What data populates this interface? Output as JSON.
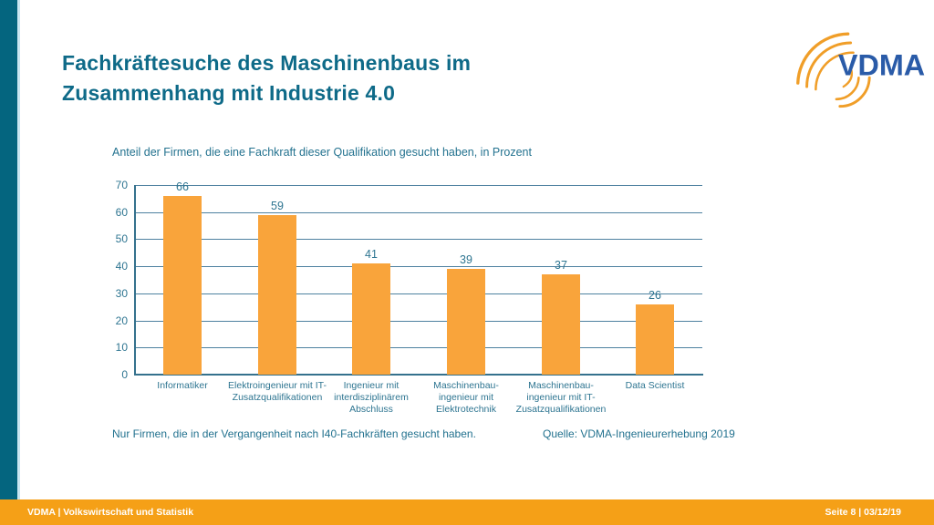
{
  "slide": {
    "title_line1": "Fachkräftesuche des Maschinenbaus im",
    "title_line2": "Zusammenhang mit Industrie 4.0",
    "subtitle": "Anteil der Firmen, die eine Fachkraft dieser Qualifikation gesucht haben, in Prozent",
    "footnote": "Nur Firmen, die in der Vergangenheit nach I40-Fachkräften gesucht haben.",
    "source": "Quelle: VDMA-Ingenieurerhebung 2019"
  },
  "logo": {
    "text": "VDMA"
  },
  "footer": {
    "left": "VDMA | Volkswirtschaft und Statistik",
    "right": "Seite 8 | 03/12/19"
  },
  "colors": {
    "teal_strip": "#04657f",
    "teal_text": "#23728f",
    "title_teal": "#0e6a88",
    "bar_orange": "#f9a43b",
    "footer_orange": "#f5a017",
    "logo_blue": "#2a5ba8",
    "logo_arc_orange": "#f09e28",
    "gridline": "#4e81a0"
  },
  "chart_data": {
    "type": "bar",
    "title": "Anteil der Firmen, die eine Fachkraft dieser Qualifikation gesucht haben, in Prozent",
    "categories": [
      "Informatiker",
      "Elektroingenieur mit IT-\nZusatzqualifikationen",
      "Ingenieur mit\ninterdisziplinärem\nAbschluss",
      "Maschinenbau-\ningenieur mit\nElektrotechnik",
      "Maschinenbau-\ningenieur mit IT-\nZusatzqualifikationen",
      "Data Scientist"
    ],
    "values": [
      66,
      59,
      41,
      39,
      37,
      26
    ],
    "xlabel": "",
    "ylabel": "",
    "ylim": [
      0,
      70
    ],
    "ytick_step": 10,
    "grid": true,
    "legend": false,
    "bar_color": "#f9a43b"
  }
}
